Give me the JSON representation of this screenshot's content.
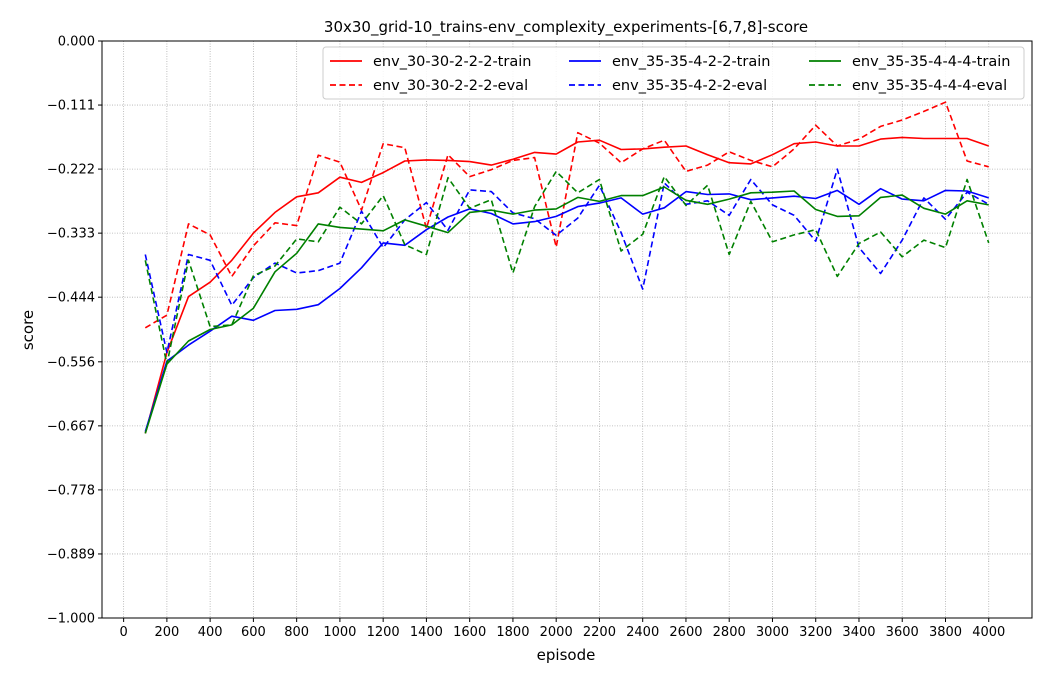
{
  "chart_data": {
    "type": "line",
    "title": "30x30_grid-10_trains-env_complexity_experiments-[6,7,8]-score",
    "xlabel": "episode",
    "ylabel": "score",
    "xlim": [
      -100,
      4200
    ],
    "ylim": [
      -1.0,
      0.0
    ],
    "xticks": [
      0,
      200,
      400,
      600,
      800,
      1000,
      1200,
      1400,
      1600,
      1800,
      2000,
      2200,
      2400,
      2600,
      2800,
      3000,
      3200,
      3400,
      3600,
      3800,
      4000
    ],
    "xtick_labels": [
      "0",
      "200",
      "400",
      "600",
      "800",
      "1000",
      "1200",
      "1400",
      "1600",
      "1800",
      "2000",
      "2200",
      "2400",
      "2600",
      "2800",
      "3000",
      "3200",
      "3400",
      "3600",
      "3800",
      "4000"
    ],
    "yticks": [
      0.0,
      -0.111,
      -0.222,
      -0.333,
      -0.444,
      -0.556,
      -0.667,
      -0.778,
      -0.889,
      -1.0
    ],
    "ytick_labels": [
      "0.000",
      "−0.111",
      "−0.222",
      "−0.333",
      "−0.444",
      "−0.556",
      "−0.667",
      "−0.778",
      "−0.889",
      "−1.000"
    ],
    "grid": true,
    "legend_position": "top-right",
    "legend_columns": 3,
    "x": [
      100,
      200,
      300,
      400,
      500,
      600,
      700,
      800,
      900,
      1000,
      1100,
      1200,
      1300,
      1400,
      1500,
      1600,
      1700,
      1800,
      1900,
      2000,
      2100,
      2200,
      2300,
      2400,
      2500,
      2600,
      2700,
      2800,
      2900,
      3000,
      3100,
      3200,
      3300,
      3400,
      3500,
      3600,
      3700,
      3800,
      3900,
      4000
    ],
    "series": [
      {
        "name": "env_30-30-2-2-2-train",
        "color": "#ff0000",
        "dash": "solid",
        "values": [
          -0.68,
          -0.54,
          -0.443,
          -0.418,
          -0.38,
          -0.333,
          -0.297,
          -0.27,
          -0.263,
          -0.236,
          -0.245,
          -0.228,
          -0.208,
          -0.206,
          -0.207,
          -0.209,
          -0.215,
          -0.205,
          -0.193,
          -0.196,
          -0.175,
          -0.172,
          -0.188,
          -0.187,
          -0.184,
          -0.182,
          -0.197,
          -0.211,
          -0.213,
          -0.197,
          -0.178,
          -0.175,
          -0.182,
          -0.182,
          -0.17,
          -0.167,
          -0.169,
          -0.169,
          -0.169,
          -0.182
        ]
      },
      {
        "name": "env_30-30-2-2-2-eval",
        "color": "#ff0000",
        "dash": "dashed",
        "values": [
          -0.497,
          -0.475,
          -0.317,
          -0.336,
          -0.408,
          -0.355,
          -0.315,
          -0.32,
          -0.198,
          -0.21,
          -0.293,
          -0.178,
          -0.185,
          -0.325,
          -0.197,
          -0.235,
          -0.223,
          -0.207,
          -0.202,
          -0.357,
          -0.159,
          -0.177,
          -0.211,
          -0.187,
          -0.172,
          -0.226,
          -0.215,
          -0.192,
          -0.207,
          -0.218,
          -0.187,
          -0.146,
          -0.182,
          -0.17,
          -0.148,
          -0.137,
          -0.122,
          -0.106,
          -0.208,
          -0.218
        ]
      },
      {
        "name": "env_35-35-4-2-2-train",
        "color": "#0000ff",
        "dash": "solid",
        "values": [
          -0.677,
          -0.555,
          -0.527,
          -0.503,
          -0.477,
          -0.484,
          -0.467,
          -0.465,
          -0.457,
          -0.429,
          -0.393,
          -0.35,
          -0.354,
          -0.327,
          -0.305,
          -0.291,
          -0.299,
          -0.317,
          -0.313,
          -0.304,
          -0.287,
          -0.281,
          -0.272,
          -0.3,
          -0.289,
          -0.261,
          -0.266,
          -0.265,
          -0.275,
          -0.272,
          -0.269,
          -0.273,
          -0.259,
          -0.283,
          -0.256,
          -0.274,
          -0.277,
          -0.259,
          -0.26,
          -0.272
        ]
      },
      {
        "name": "env_35-35-4-2-2-eval",
        "color": "#0000ff",
        "dash": "dashed",
        "values": [
          -0.37,
          -0.54,
          -0.37,
          -0.38,
          -0.458,
          -0.41,
          -0.385,
          -0.402,
          -0.398,
          -0.385,
          -0.295,
          -0.358,
          -0.31,
          -0.28,
          -0.328,
          -0.258,
          -0.261,
          -0.298,
          -0.308,
          -0.337,
          -0.307,
          -0.25,
          -0.332,
          -0.43,
          -0.246,
          -0.283,
          -0.277,
          -0.302,
          -0.24,
          -0.284,
          -0.302,
          -0.347,
          -0.222,
          -0.358,
          -0.403,
          -0.345,
          -0.272,
          -0.309,
          -0.262,
          -0.283
        ]
      },
      {
        "name": "env_35-35-4-4-4-train",
        "color": "#008000",
        "dash": "solid",
        "values": [
          -0.68,
          -0.56,
          -0.52,
          -0.5,
          -0.492,
          -0.463,
          -0.4,
          -0.368,
          -0.317,
          -0.323,
          -0.326,
          -0.329,
          -0.31,
          -0.321,
          -0.332,
          -0.297,
          -0.293,
          -0.3,
          -0.293,
          -0.291,
          -0.271,
          -0.278,
          -0.268,
          -0.268,
          -0.253,
          -0.276,
          -0.283,
          -0.274,
          -0.263,
          -0.262,
          -0.26,
          -0.292,
          -0.304,
          -0.303,
          -0.271,
          -0.267,
          -0.29,
          -0.3,
          -0.277,
          -0.284
        ]
      },
      {
        "name": "env_35-35-4-4-4-eval",
        "color": "#008000",
        "dash": "dashed",
        "values": [
          -0.38,
          -0.56,
          -0.38,
          -0.495,
          -0.492,
          -0.407,
          -0.39,
          -0.343,
          -0.348,
          -0.288,
          -0.317,
          -0.268,
          -0.353,
          -0.37,
          -0.237,
          -0.29,
          -0.275,
          -0.402,
          -0.287,
          -0.226,
          -0.263,
          -0.24,
          -0.364,
          -0.335,
          -0.235,
          -0.285,
          -0.25,
          -0.37,
          -0.278,
          -0.348,
          -0.336,
          -0.327,
          -0.408,
          -0.351,
          -0.331,
          -0.374,
          -0.345,
          -0.358,
          -0.24,
          -0.35
        ]
      }
    ]
  }
}
